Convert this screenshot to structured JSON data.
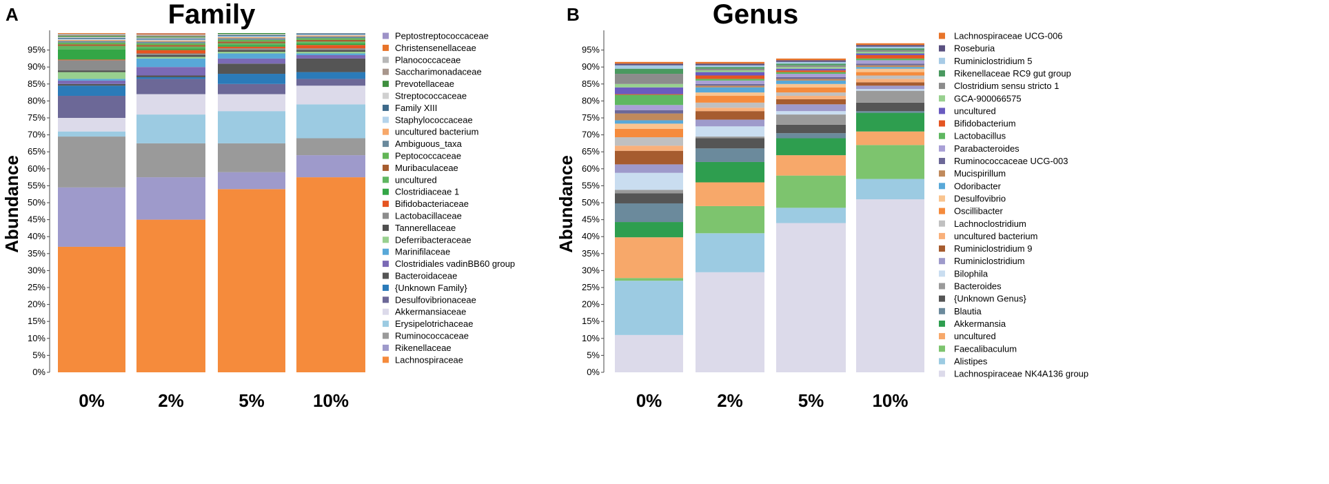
{
  "figure": {
    "panel_a_letter": "A",
    "panel_b_letter": "B"
  },
  "colors": {
    "orange": "#f58b3c",
    "lavender": "#9e9acb",
    "gray": "#9a9a9a",
    "lightblue": "#9ccbe2",
    "pale": "#dcdaea",
    "slate": "#6c6897",
    "blue": "#2b7bb9",
    "darkgray": "#555555",
    "purple": "#7b6ab5",
    "skyblue": "#58a8d8",
    "lightgreen": "#98d08f",
    "green": "#33a646",
    "brown": "#a65c2f",
    "peach": "#f7a86a",
    "medgreen": "#5fb761",
    "red": "#e55522",
    "teal": "#6b8a9c",
    "palegreen": "#7dc46e",
    "deepgreen": "#2e9e4f",
    "lightorange": "#f9c48f",
    "tan": "#c08a5c",
    "lightgray": "#c0c0c0",
    "purpleblue": "#6a5bc0",
    "bluegray": "#5f7f96",
    "skyblue2": "#a7cbe6",
    "green2": "#4a9960",
    "darkslate": "#5a5080",
    "gold": "#d2a35e"
  },
  "chart_data": [
    {
      "type": "bar",
      "stacked": true,
      "title": "Family",
      "ylabel": "Abundance",
      "xlabel": "",
      "ylim": [
        0,
        100
      ],
      "yticks": [
        "0%",
        "5%",
        "10%",
        "15%",
        "20%",
        "25%",
        "30%",
        "35%",
        "40%",
        "45%",
        "50%",
        "55%",
        "60%",
        "65%",
        "70%",
        "75%",
        "80%",
        "85%",
        "90%",
        "95%"
      ],
      "categories": [
        "0%",
        "2%",
        "5%",
        "10%"
      ],
      "legend_position": "right",
      "series": [
        {
          "name": "Lachnospiraceae",
          "color": "#f58b3c",
          "values": [
            37,
            45,
            54,
            57.5
          ]
        },
        {
          "name": "Rikenellaceae",
          "color": "#9e9acb",
          "values": [
            17.5,
            12.5,
            5,
            6.5
          ]
        },
        {
          "name": "Ruminococcaceae",
          "color": "#9a9a9a",
          "values": [
            15,
            10,
            8.5,
            5
          ]
        },
        {
          "name": "Erysipelotrichaceae",
          "color": "#9ccbe2",
          "values": [
            1.5,
            8.5,
            9.5,
            10
          ]
        },
        {
          "name": "Akkermansiaceae",
          "color": "#dcdaea",
          "values": [
            4,
            6,
            5,
            5.5
          ]
        },
        {
          "name": "Desulfovibrionaceae",
          "color": "#6c6897",
          "values": [
            6.5,
            4.5,
            3,
            2
          ]
        },
        {
          "name": "{Unknown Family}",
          "color": "#2b7bb9",
          "values": [
            3,
            0.5,
            3,
            2
          ]
        },
        {
          "name": "Bacteroidaceae",
          "color": "#555555",
          "values": [
            0.5,
            0.5,
            3,
            4
          ]
        },
        {
          "name": "Clostridiales vadinBB60 group",
          "color": "#7b6ab5",
          "values": [
            1,
            2.5,
            1.5,
            1
          ]
        },
        {
          "name": "Marinifilaceae",
          "color": "#58a8d8",
          "values": [
            0.5,
            2.5,
            1.5,
            0.5
          ]
        },
        {
          "name": "Deferribacteraceae",
          "color": "#98d08f",
          "values": [
            2,
            0.5,
            0.5,
            0.5
          ]
        },
        {
          "name": "Tannerellaceae",
          "color": "#4f4f4f",
          "values": [
            0.5,
            0.5,
            0.5,
            0.5
          ]
        },
        {
          "name": "Lactobacillaceae",
          "color": "#8c8c8c",
          "values": [
            3,
            0.5,
            0.5,
            0.5
          ]
        },
        {
          "name": "Bifidobacteriaceae",
          "color": "#e55522",
          "values": [
            0.2,
            1,
            0.5,
            1
          ]
        },
        {
          "name": "Clostridiaceae 1",
          "color": "#33a646",
          "values": [
            3,
            0.5,
            0.5,
            0.5
          ]
        },
        {
          "name": "uncultured",
          "color": "#5fb761",
          "values": [
            1,
            0.5,
            0.5,
            0.5
          ]
        },
        {
          "name": "Muribaculaceae",
          "color": "#a65c2f",
          "values": [
            0.5,
            0.5,
            0.5,
            0.5
          ]
        },
        {
          "name": "Peptococcaceae",
          "color": "#62b556",
          "values": [
            0.5,
            0.5,
            0.5,
            0.5
          ]
        },
        {
          "name": "Ambiguous_taxa",
          "color": "#6b8a9c",
          "values": [
            0.5,
            0.5,
            0.5,
            0.5
          ]
        },
        {
          "name": "uncultured bacterium",
          "color": "#f7a86a",
          "values": [
            0.3,
            0.3,
            0.3,
            0.3
          ]
        },
        {
          "name": "Staphylococcaceae",
          "color": "#b5d4ec",
          "values": [
            0.3,
            0.3,
            0.3,
            0.3
          ]
        },
        {
          "name": "Family XIII",
          "color": "#3e6a8a",
          "values": [
            0.3,
            0.3,
            0.3,
            0.3
          ]
        },
        {
          "name": "Streptococcaceae",
          "color": "#d0d0d0",
          "values": [
            0.3,
            0.3,
            0.3,
            0.3
          ]
        },
        {
          "name": "Prevotellaceae",
          "color": "#3f8f3f",
          "values": [
            0.3,
            0.3,
            0.3,
            0.3
          ]
        },
        {
          "name": "Saccharimonadaceae",
          "color": "#a8968c",
          "values": [
            0.3,
            0.3,
            0.3,
            0.3
          ]
        },
        {
          "name": "Planococcaceae",
          "color": "#b8b8b8",
          "values": [
            0.3,
            0.3,
            0.3,
            0.3
          ]
        },
        {
          "name": "Christensenellaceae",
          "color": "#e8742a",
          "values": [
            0.3,
            0.3,
            0.3,
            0.3
          ]
        },
        {
          "name": "Peptostreptococcaceae",
          "color": "#9d92c7",
          "values": [
            0.3,
            0.3,
            0.3,
            0.3
          ]
        }
      ]
    },
    {
      "type": "bar",
      "stacked": true,
      "title": "Genus",
      "ylabel": "Abundance",
      "xlabel": "",
      "ylim": [
        0,
        100
      ],
      "yticks": [
        "0%",
        "5%",
        "10%",
        "15%",
        "20%",
        "25%",
        "30%",
        "35%",
        "40%",
        "45%",
        "50%",
        "55%",
        "60%",
        "65%",
        "70%",
        "75%",
        "80%",
        "85%",
        "90%",
        "95%"
      ],
      "categories": [
        "0%",
        "2%",
        "5%",
        "10%"
      ],
      "legend_position": "right",
      "series": [
        {
          "name": "Lachnospiraceae NK4A136 group",
          "color": "#dcdaea",
          "values": [
            11,
            29.5,
            44,
            51
          ]
        },
        {
          "name": "Alistipes",
          "color": "#9ccbe2",
          "values": [
            16,
            11.5,
            4.5,
            6
          ]
        },
        {
          "name": "Faecalibaculum",
          "color": "#7dc46e",
          "values": [
            0.8,
            8,
            9.5,
            10
          ]
        },
        {
          "name": "uncultured",
          "color": "#f7a86a",
          "values": [
            12,
            7,
            6,
            4
          ]
        },
        {
          "name": "Akkermansia",
          "color": "#2e9e4f",
          "values": [
            4.5,
            6,
            5,
            5.5
          ]
        },
        {
          "name": "Blautia",
          "color": "#6b8a9c",
          "values": [
            5.5,
            4,
            1.5,
            0.5
          ]
        },
        {
          "name": "{Unknown Genus}",
          "color": "#555555",
          "values": [
            3,
            3,
            2.5,
            2.5
          ]
        },
        {
          "name": "Bacteroides",
          "color": "#9a9a9a",
          "values": [
            1,
            0.5,
            3,
            3.5
          ]
        },
        {
          "name": "Bilophila",
          "color": "#c9ddf0",
          "values": [
            5,
            3,
            1,
            0.5
          ]
        },
        {
          "name": "Ruminiclostridium",
          "color": "#9e9acb",
          "values": [
            2.5,
            2,
            2,
            1
          ]
        },
        {
          "name": "Ruminiclostridium 9",
          "color": "#a65c2f",
          "values": [
            4,
            2.5,
            1.5,
            1
          ]
        },
        {
          "name": "uncultured bacterium",
          "color": "#f9b07a",
          "values": [
            1.5,
            1,
            1,
            1
          ]
        },
        {
          "name": "Lachnoclostridium",
          "color": "#c0c0c0",
          "values": [
            2.5,
            1.5,
            1,
            1
          ]
        },
        {
          "name": "Oscillibacter",
          "color": "#f58b3c",
          "values": [
            2.5,
            2,
            1.5,
            1
          ]
        },
        {
          "name": "Desulfovibrio",
          "color": "#f9c48f",
          "values": [
            1.5,
            1,
            1,
            1
          ]
        },
        {
          "name": "Odoribacter",
          "color": "#58a8d8",
          "values": [
            1,
            1.5,
            1,
            0.5
          ]
        },
        {
          "name": "Mucispirillum",
          "color": "#c08a5c",
          "values": [
            2,
            0.5,
            0.5,
            0.5
          ]
        },
        {
          "name": "Ruminococcaceae UCG-003",
          "color": "#6c6897",
          "values": [
            1,
            0.5,
            0.5,
            0.5
          ]
        },
        {
          "name": "Parabacteroides",
          "color": "#a9a0d6",
          "values": [
            1.5,
            1,
            1,
            1
          ]
        },
        {
          "name": "Lactobacillus",
          "color": "#5fb761",
          "values": [
            3,
            0.5,
            0.5,
            0.5
          ]
        },
        {
          "name": "Bifidobacterium",
          "color": "#e55522",
          "values": [
            0.2,
            1,
            0.5,
            1
          ]
        },
        {
          "name": "uncultured ",
          "color": "#6a5bc0",
          "values": [
            2,
            1,
            0.5,
            0.5
          ]
        },
        {
          "name": "GCA-900066575",
          "color": "#98d08f",
          "values": [
            1,
            0.5,
            0.5,
            0.5
          ]
        },
        {
          "name": "Clostridium sensu stricto 1",
          "color": "#8c8c8c",
          "values": [
            3,
            0.5,
            0.5,
            0.5
          ]
        },
        {
          "name": "Rikenellaceae RC9 gut group",
          "color": "#4a9960",
          "values": [
            1.5,
            0.5,
            0.5,
            0.5
          ]
        },
        {
          "name": "Ruminiclostridium 5",
          "color": "#a7cbe6",
          "values": [
            1,
            0.5,
            0.5,
            0.5
          ]
        },
        {
          "name": "Roseburia",
          "color": "#5a5080",
          "values": [
            0.5,
            0.5,
            0.5,
            0.5
          ]
        },
        {
          "name": "Lachnospiraceae UCG-006",
          "color": "#e8742a",
          "values": [
            0.5,
            0.5,
            0.5,
            0.5
          ]
        }
      ]
    }
  ]
}
